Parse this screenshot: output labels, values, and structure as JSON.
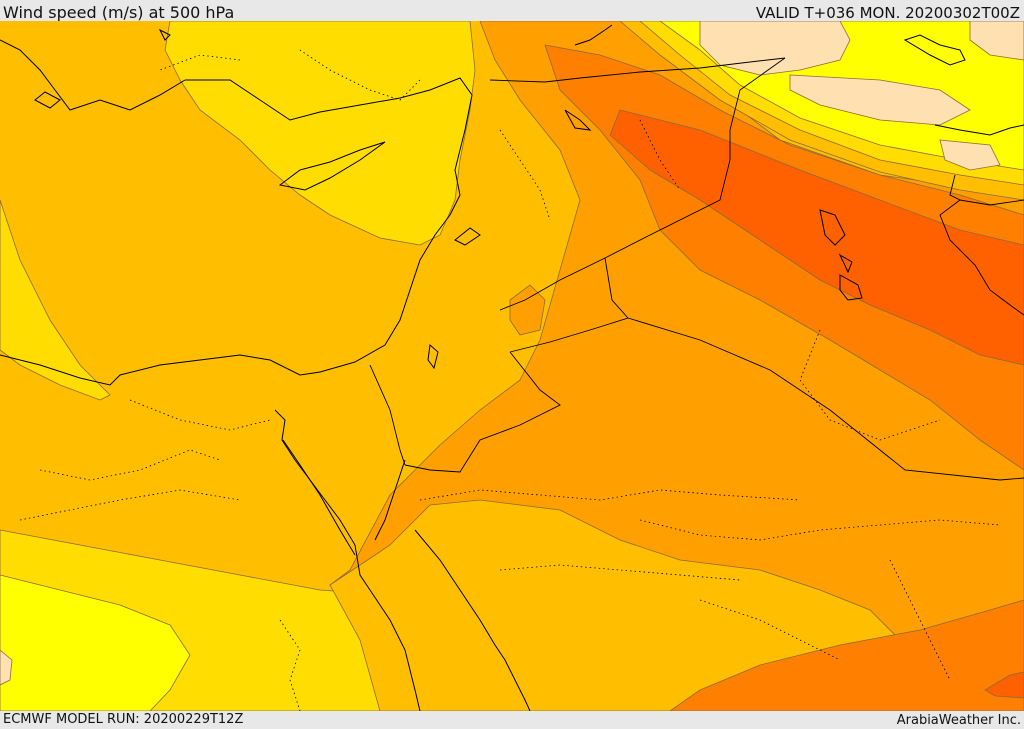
{
  "header": {
    "title": "Wind speed (m/s) at 500 hPa",
    "valid_label": "VALID T+036 MON. 20200302T00Z"
  },
  "footer": {
    "model_run": "ECMWF MODEL RUN: 20200229T12Z",
    "credit": "ArabiaWeather Inc."
  },
  "palette": {
    "pale_yellow": "#ffff00",
    "yellow": "#ffdd00",
    "light_orange": "#ffbf00",
    "orange": "#ffa000",
    "dark_orange": "#ff8000",
    "red_orange": "#ff6000",
    "cream": "#ffe0b0",
    "contour_line": "#8c6a3c",
    "border_line": "#000000"
  }
}
